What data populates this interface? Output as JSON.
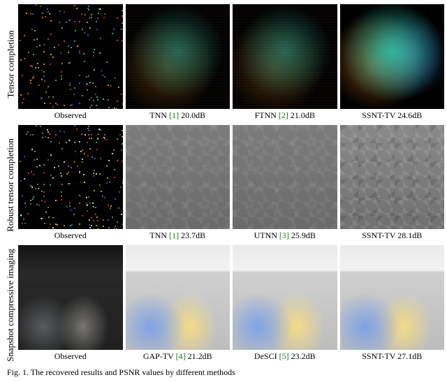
{
  "rows": [
    {
      "label": "Tensor completion",
      "cells": [
        {
          "caption_pre": "Observed",
          "ref": "",
          "caption_post": "",
          "style": "speckle",
          "speckle_density": 180,
          "speckle_colors": [
            "#2fd6b0",
            "#e07a2a",
            "#3a6fe0",
            "#d94b4b",
            "#e0d03a"
          ]
        },
        {
          "caption_pre": "TNN ",
          "ref": "[1]",
          "caption_post": " 20.0dB",
          "style": "beads-dim chroma-noise"
        },
        {
          "caption_pre": "FTNN ",
          "ref": "[2]",
          "caption_post": " 21.0dB",
          "style": "beads-dim chroma-noise"
        },
        {
          "caption_pre": "SSNT-TV",
          "ref": "",
          "caption_post": " 24.6dB",
          "style": "beads-bright"
        }
      ]
    },
    {
      "label": "Robust tensor completion",
      "cells": [
        {
          "caption_pre": "Observed",
          "ref": "",
          "caption_post": "",
          "style": "speckle",
          "speckle_density": 220,
          "speckle_colors": [
            "#2fd6b0",
            "#e07a2a",
            "#3a6fe0",
            "#d94b4b",
            "#e0d03a",
            "#ffffff"
          ]
        },
        {
          "caption_pre": "TNN ",
          "ref": "[1]",
          "caption_post": " 23.7dB",
          "style": "aerial"
        },
        {
          "caption_pre": "UTNN ",
          "ref": "[3]",
          "caption_post": " 25.9dB",
          "style": "aerial"
        },
        {
          "caption_pre": "SSNT-TV",
          "ref": "",
          "caption_post": " 28.1dB",
          "style": "aerial sharp"
        }
      ]
    },
    {
      "label": "Snapshot compressive imaging",
      "cells": [
        {
          "caption_pre": "Observed",
          "ref": "",
          "caption_post": "",
          "style": "toy gray"
        },
        {
          "caption_pre": "GAP-TV ",
          "ref": "[4]",
          "caption_post": " 21.2dB",
          "style": "toy bright chroma-noise"
        },
        {
          "caption_pre": "DeSCI ",
          "ref": "[5]",
          "caption_post": " 23.2dB",
          "style": "toy bright chroma-noise"
        },
        {
          "caption_pre": "SSNT-TV",
          "ref": "",
          "caption_post": " 27.1dB",
          "style": "toy bright"
        }
      ]
    }
  ],
  "figure_caption_prefix": "Fig. 1.   The recovered results and PSNR values by different methods"
}
